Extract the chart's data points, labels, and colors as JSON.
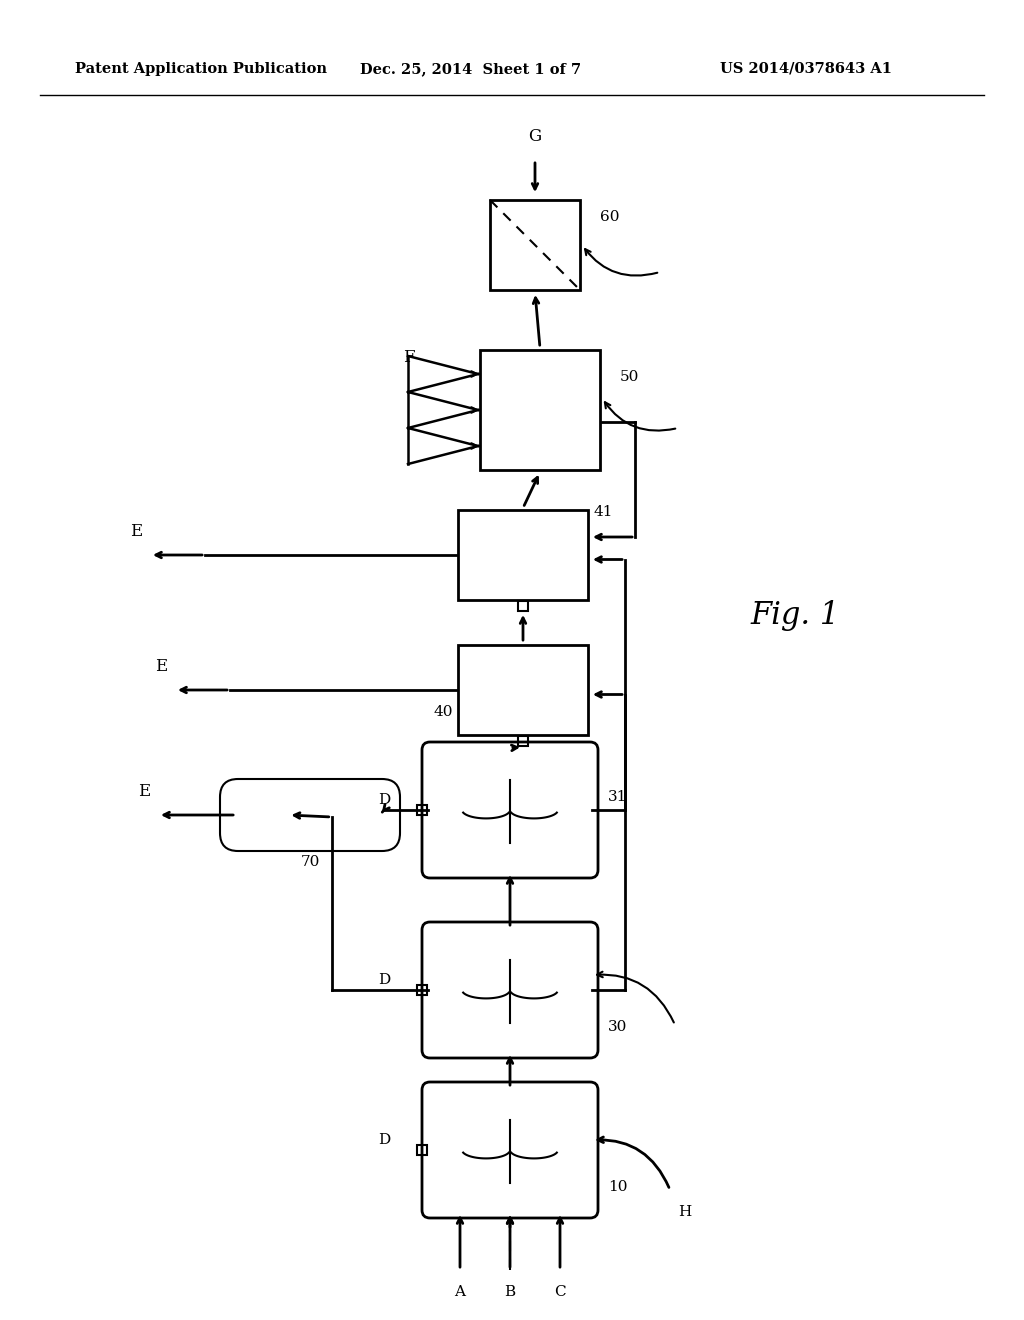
{
  "bg_color": "#ffffff",
  "header_left": "Patent Application Publication",
  "header_mid": "Dec. 25, 2014  Sheet 1 of 7",
  "header_right": "US 2014/0378643 A1",
  "fig_label": "Fig. 1"
}
